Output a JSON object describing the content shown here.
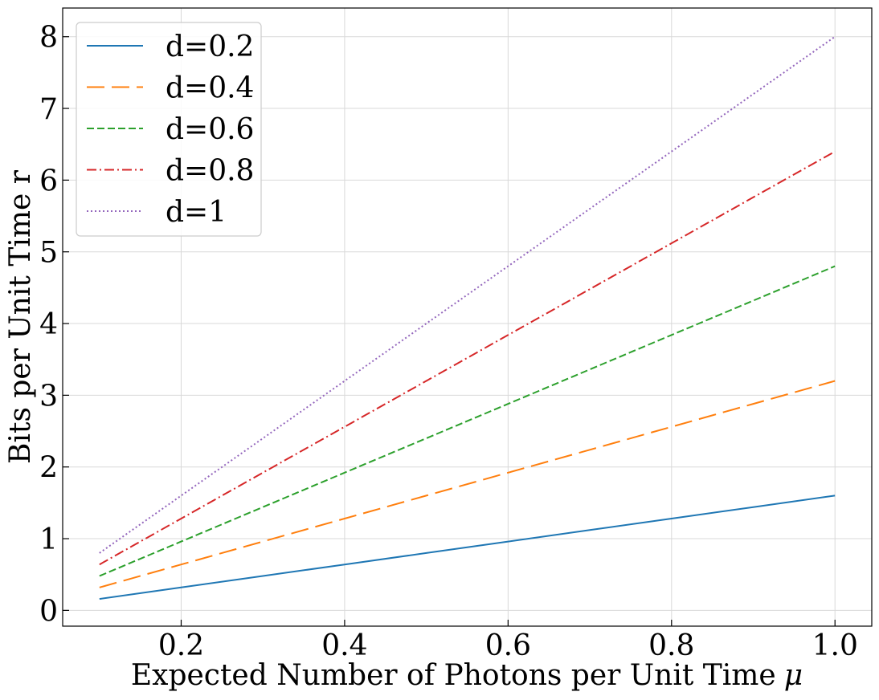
{
  "chart_data": {
    "type": "line",
    "title": "",
    "xlabel": "Expected Number of Photons per Unit Time",
    "xlabel_symbol": "μ",
    "ylabel": "Bits per Unit Time r",
    "xlim": [
      0.055,
      1.045
    ],
    "ylim": [
      -0.22,
      8.4
    ],
    "xticks": [
      0.2,
      0.4,
      0.6,
      0.8,
      1.0
    ],
    "xtick_labels": [
      "0.2",
      "0.4",
      "0.6",
      "0.8",
      "1.0"
    ],
    "yticks": [
      0,
      1,
      2,
      3,
      4,
      5,
      6,
      7,
      8
    ],
    "ytick_labels": [
      "0",
      "1",
      "2",
      "3",
      "4",
      "5",
      "6",
      "7",
      "8"
    ],
    "grid": true,
    "legend_position": "top-left",
    "x": [
      0.1,
      0.2,
      0.3,
      0.4,
      0.5,
      0.6,
      0.7,
      0.8,
      0.9,
      1.0
    ],
    "series": [
      {
        "name": "d=0.2",
        "color": "#1f77b4",
        "dash": "solid",
        "values": [
          0.16,
          0.32,
          0.48,
          0.64,
          0.8,
          0.96,
          1.12,
          1.28,
          1.44,
          1.6
        ]
      },
      {
        "name": "d=0.4",
        "color": "#ff7f0e",
        "dash": "long-dash",
        "values": [
          0.32,
          0.64,
          0.96,
          1.28,
          1.6,
          1.92,
          2.24,
          2.56,
          2.88,
          3.2
        ]
      },
      {
        "name": "d=0.6",
        "color": "#2ca02c",
        "dash": "dash",
        "values": [
          0.48,
          0.96,
          1.44,
          1.92,
          2.4,
          2.88,
          3.36,
          3.84,
          4.32,
          4.8
        ]
      },
      {
        "name": "d=0.8",
        "color": "#d62728",
        "dash": "dash-dot",
        "values": [
          0.64,
          1.28,
          1.92,
          2.56,
          3.2,
          3.84,
          4.48,
          5.12,
          5.76,
          6.4
        ]
      },
      {
        "name": "d=1",
        "color": "#9467bd",
        "dash": "dotted",
        "values": [
          0.8,
          1.6,
          2.4,
          3.2,
          4.0,
          4.8,
          5.6,
          6.4,
          7.2,
          8.0
        ]
      }
    ]
  }
}
